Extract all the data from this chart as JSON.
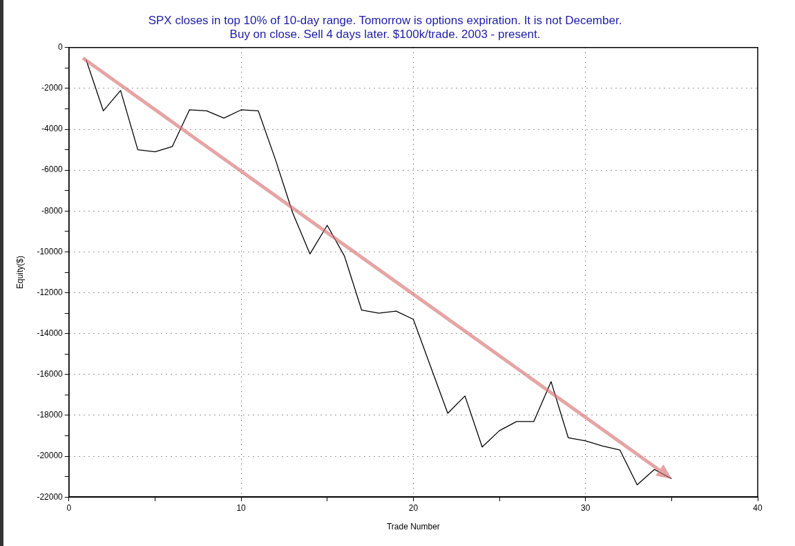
{
  "chart_data": {
    "type": "line",
    "title": "SPX closes in top 10% of 10-day range. Tomorrow is options expiration. It is not December.\nBuy on close. Sell 4 days later. $100k/trade. 2003 - present.",
    "xlabel": "Trade Number",
    "ylabel": "Equity($)",
    "x": [
      1,
      2,
      3,
      4,
      5,
      6,
      7,
      8,
      9,
      10,
      11,
      12,
      13,
      14,
      15,
      16,
      17,
      18,
      19,
      20,
      21,
      22,
      23,
      24,
      25,
      26,
      27,
      28,
      29,
      30,
      31,
      32,
      33,
      34,
      35
    ],
    "series": [
      {
        "color": "#000000",
        "values": [
          -600,
          -3100,
          -2100,
          -5000,
          -5100,
          -4850,
          -3050,
          -3100,
          -3450,
          -3050,
          -3100,
          -5500,
          -8100,
          -10100,
          -8700,
          -10200,
          -12850,
          -13000,
          -12900,
          -13300,
          -15600,
          -17900,
          -17050,
          -19550,
          -18750,
          -18300,
          -18300,
          -16350,
          -19100,
          -19250,
          -19500,
          -19700,
          -21400,
          -20650,
          -21100
        ]
      }
    ],
    "xlim": [
      0,
      40
    ],
    "xticks": [
      0,
      {
        "value": 5,
        "label": null
      },
      10,
      {
        "value": 15,
        "label": null
      },
      20,
      {
        "value": 25,
        "label": null
      },
      30,
      {
        "value": 35,
        "label": null
      },
      40
    ],
    "ylim": [
      -22000,
      0
    ],
    "yticks": [
      -22000,
      {
        "value": -21000,
        "label": null
      },
      -20000,
      {
        "value": -19000,
        "label": null
      },
      -18000,
      {
        "value": -17000,
        "label": null
      },
      -16000,
      {
        "value": -15000,
        "label": null
      },
      -14000,
      {
        "value": -13000,
        "label": null
      },
      -12000,
      {
        "value": -11000,
        "label": null
      },
      -10000,
      {
        "value": -9000,
        "label": null
      },
      -8000,
      {
        "value": -7000,
        "label": null
      },
      -6000,
      {
        "value": -5000,
        "label": null
      },
      -4000,
      {
        "value": -3000,
        "label": null
      },
      -2000,
      {
        "value": -1000,
        "label": null
      },
      0
    ],
    "grid": true,
    "legend": false,
    "marker": "none",
    "line_style": "solid"
  }
}
